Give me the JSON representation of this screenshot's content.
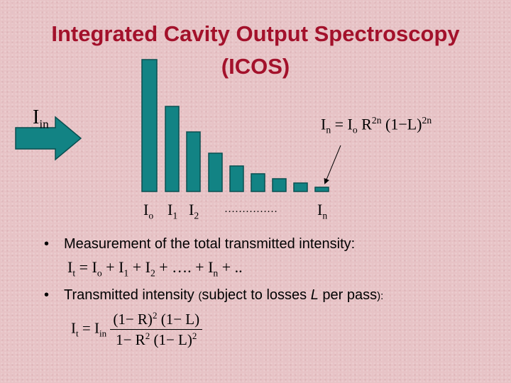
{
  "title": [
    "Integrated Cavity Output Spectroscopy",
    "(ICOS)"
  ],
  "input_label": [
    "I",
    "in"
  ],
  "formula_n": [
    "I",
    "n",
    "= I",
    "o",
    " R",
    "2n",
    " (1−L)",
    "2n"
  ],
  "intensity_labels": [
    [
      "I",
      "o"
    ],
    [
      "I",
      "1"
    ],
    [
      "I",
      "2"
    ],
    "……………",
    [
      "I",
      "n"
    ]
  ],
  "bullets": [
    {
      "text": "Measurement of the total transmitted intensity:",
      "formula": [
        "I",
        "t",
        " = I",
        "o",
        " + I",
        "1",
        " + I",
        "2",
        " + …. + I",
        "n",
        " + .."
      ]
    },
    {
      "text": [
        "Transmitted intensity ",
        "(",
        "subject to losses ",
        "L",
        " per pass",
        ")",
        ":"
      ],
      "formula": {
        "lhs": [
          "I",
          "t",
          " = I",
          "in"
        ],
        "numerator": [
          "(1− R)",
          "2",
          " (1− L)"
        ],
        "denominator": [
          "1− R",
          "2",
          " (1− L)",
          "2"
        ]
      }
    }
  ]
}
